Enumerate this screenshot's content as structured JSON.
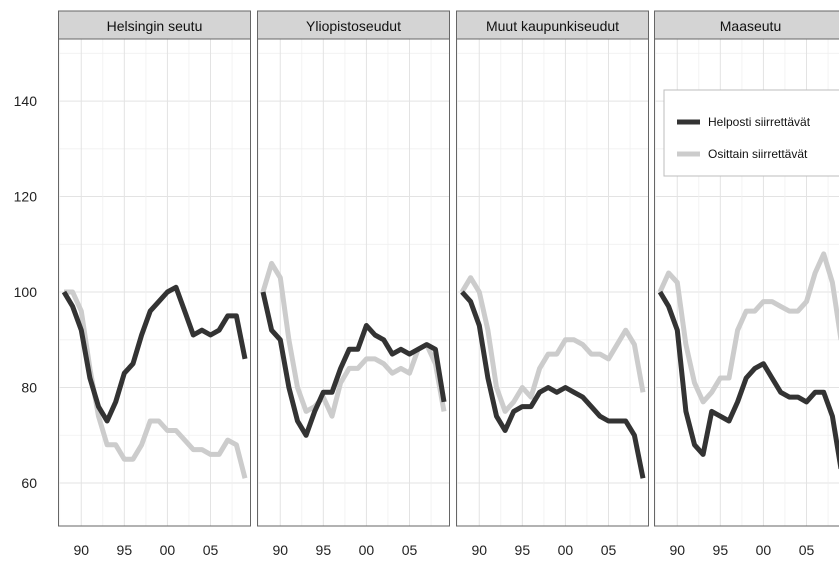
{
  "chart_data": {
    "type": "line",
    "facets": [
      "Helsingin seutu",
      "Yliopistoseudut",
      "Muut kaupunkiseudut",
      "Maaseutu"
    ],
    "x": [
      1988,
      1989,
      1990,
      1991,
      1992,
      1993,
      1994,
      1995,
      1996,
      1997,
      1998,
      1999,
      2000,
      2001,
      2002,
      2003,
      2004,
      2005,
      2006,
      2007,
      2008,
      2009
    ],
    "x_tick_values": [
      1990,
      1995,
      2000,
      2005
    ],
    "x_tick_labels": [
      "90",
      "95",
      "00",
      "05"
    ],
    "y_ticks": [
      60,
      80,
      100,
      120,
      140
    ],
    "ylim": [
      51,
      153
    ],
    "xlim": [
      1987.3,
      2009.7
    ],
    "grid": true,
    "legend_position": "top-right",
    "series": [
      {
        "name": "Helposti siirrettävät",
        "color": "#333333",
        "values_by_facet": [
          [
            100,
            97,
            92,
            82,
            76,
            73,
            77,
            83,
            85,
            91,
            96,
            98,
            100,
            101,
            96,
            91,
            92,
            91,
            92,
            95,
            95,
            86
          ],
          [
            100,
            92,
            90,
            80,
            73,
            70,
            75,
            79,
            79,
            84,
            88,
            88,
            93,
            91,
            90,
            87,
            88,
            87,
            88,
            89,
            88,
            77
          ],
          [
            100,
            98,
            93,
            82,
            74,
            71,
            75,
            76,
            76,
            79,
            80,
            79,
            80,
            79,
            78,
            76,
            74,
            73,
            73,
            73,
            70,
            61
          ],
          [
            100,
            97,
            92,
            75,
            68,
            66,
            75,
            74,
            73,
            77,
            82,
            84,
            85,
            82,
            79,
            78,
            78,
            77,
            79,
            79,
            74,
            63
          ]
        ]
      },
      {
        "name": "Osittain siirrettävät",
        "color": "#cccccc",
        "values_by_facet": [
          [
            100,
            100,
            96,
            84,
            74,
            68,
            68,
            65,
            65,
            68,
            73,
            73,
            71,
            71,
            69,
            67,
            67,
            66,
            66,
            69,
            68,
            61
          ],
          [
            100,
            106,
            103,
            90,
            80,
            75,
            76,
            78,
            74,
            81,
            84,
            84,
            86,
            86,
            85,
            83,
            84,
            83,
            88,
            89,
            85,
            75
          ],
          [
            100,
            103,
            100,
            92,
            80,
            75,
            77,
            80,
            78,
            84,
            87,
            87,
            90,
            90,
            89,
            87,
            87,
            86,
            89,
            92,
            89,
            79
          ],
          [
            100,
            104,
            102,
            89,
            81,
            77,
            79,
            82,
            82,
            92,
            96,
            96,
            98,
            98,
            97,
            96,
            96,
            98,
            104,
            108,
            102,
            90
          ]
        ]
      }
    ]
  }
}
